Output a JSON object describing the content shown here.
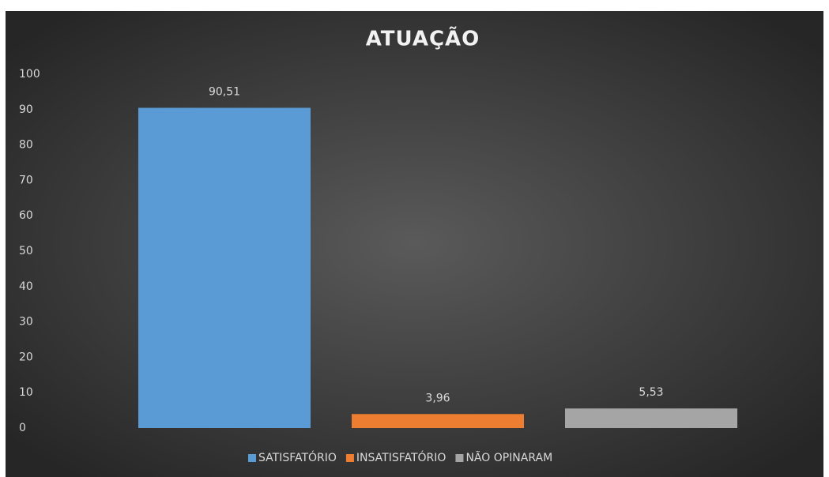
{
  "chart_data": {
    "type": "bar",
    "title": "ATUAÇÃO",
    "series": [
      {
        "name": "SATISFATÓRIO",
        "color": "#5b9bd5",
        "values": [
          90.51
        ],
        "value_labels": [
          "90,51"
        ]
      },
      {
        "name": "INSATISFATÓRIO",
        "color": "#ed7d31",
        "values": [
          3.96
        ],
        "value_labels": [
          "3,96"
        ]
      },
      {
        "name": "NÃO OPINARAM",
        "color": "#a5a5a5",
        "values": [
          5.53
        ],
        "value_labels": [
          "5,53"
        ]
      }
    ],
    "ylim": [
      0,
      100
    ],
    "yticks": [
      0,
      10,
      20,
      30,
      40,
      50,
      60,
      70,
      80,
      90,
      100
    ],
    "grid": false,
    "legend": "bottom"
  }
}
